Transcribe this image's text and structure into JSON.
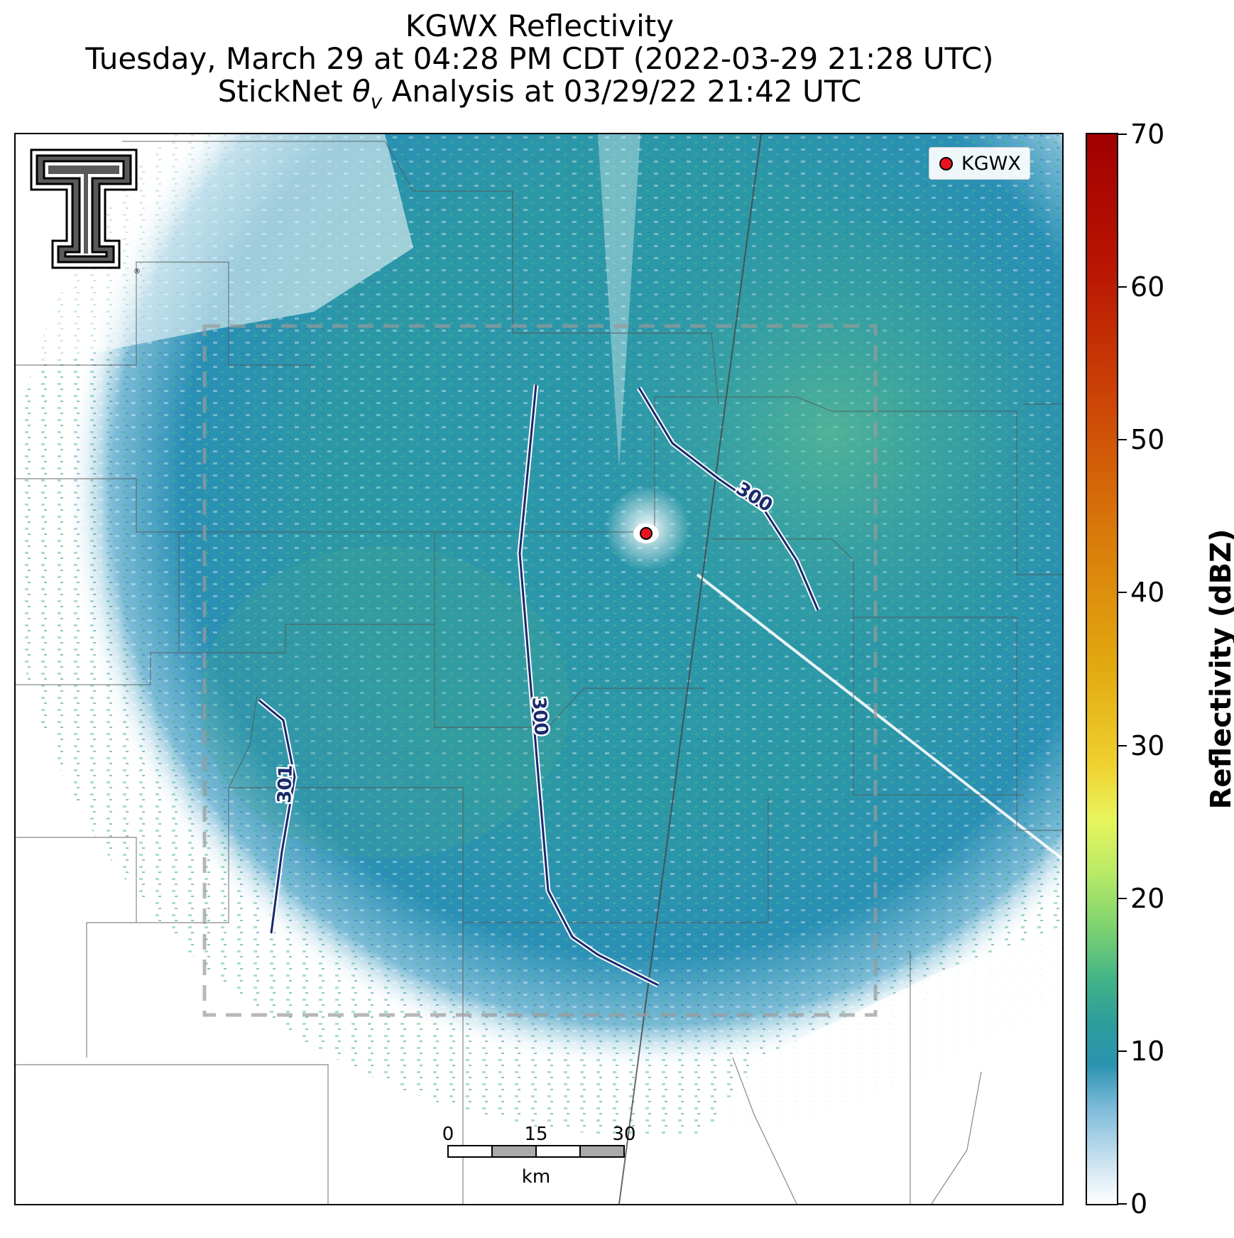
{
  "title": {
    "line1": "KGWX Reflectivity",
    "line2": "Tuesday, March 29 at 04:28 PM CDT (2022-03-29 21:28 UTC)",
    "line3_prefix": "StickNet ",
    "line3_symbol": "θ",
    "line3_sub": "v",
    "line3_suffix": " Analysis at 03/29/22 21:42 UTC"
  },
  "legend": {
    "label": "KGWX",
    "marker_color": "#e8141e"
  },
  "radar_site": {
    "name": "KGWX"
  },
  "logo": {
    "name": "texas-tech-double-t-logo",
    "registered_mark": "®"
  },
  "contours": [
    {
      "label": "300",
      "color": "#1a2a6c"
    },
    {
      "label": "300",
      "color": "#1a2a6c"
    },
    {
      "label": "301",
      "color": "#1a2a6c"
    }
  ],
  "analysis_box": {
    "style": "dashed",
    "color": "#b0b0b0"
  },
  "scalebar": {
    "ticks": [
      "0",
      "15",
      "30"
    ],
    "unit": "km"
  },
  "colorbar": {
    "title": "Reflectivity (dBZ)",
    "min": 0,
    "max": 70,
    "ticks": [
      "0",
      "10",
      "20",
      "30",
      "40",
      "50",
      "60",
      "70"
    ]
  },
  "colors": {
    "reflectivity_base": "#2a93b0",
    "reflectivity_mid": "#43b487",
    "reflectivity_high": "#a9d96a",
    "boundary": "#555555"
  }
}
